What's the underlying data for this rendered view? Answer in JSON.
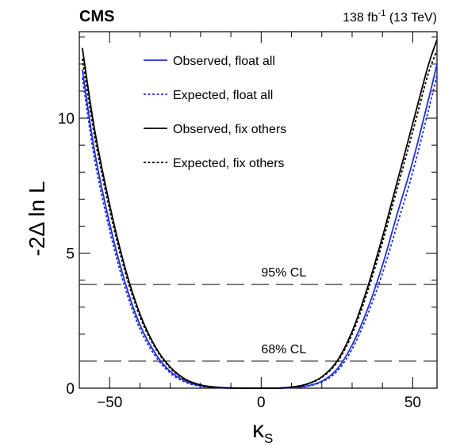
{
  "header": {
    "experiment": "CMS",
    "lumi_value": "138 fb",
    "lumi_exponent": "-1",
    "energy": " (13 TeV)"
  },
  "chart_data": {
    "type": "line",
    "title": "",
    "xlabel": "κ",
    "xlabel_subscript": "S",
    "ylabel": "-2Δ ln L",
    "xlim": [
      -60,
      58
    ],
    "ylim": [
      0,
      13.2
    ],
    "x_ticks": [
      -50,
      0,
      50
    ],
    "y_ticks": [
      0,
      5,
      10
    ],
    "grid": false,
    "legend_position": "top-center",
    "reference_lines": [
      {
        "label": "95% CL",
        "y": 3.84,
        "style": "long-dash"
      },
      {
        "label": "68% CL",
        "y": 1.0,
        "style": "long-dash"
      }
    ],
    "series": [
      {
        "name": "Observed, float all",
        "color": "#1f2fd6",
        "style": "solid",
        "x": [
          -59,
          -55,
          -50,
          -45,
          -40,
          -35,
          -30,
          -25,
          -20,
          -15,
          -10,
          -5,
          0,
          5,
          10,
          15,
          20,
          25,
          30,
          35,
          40,
          45,
          50,
          55,
          58
        ],
        "y": [
          11.8,
          8.8,
          6.1,
          3.95,
          2.35,
          1.3,
          0.62,
          0.26,
          0.09,
          0.03,
          0.0,
          0.0,
          0.0,
          0.0,
          0.02,
          0.08,
          0.26,
          0.7,
          1.6,
          2.9,
          4.55,
          6.5,
          8.4,
          10.6,
          12.0
        ]
      },
      {
        "name": "Expected, float all",
        "color": "#1f2fd6",
        "style": "dotted",
        "x": [
          -59,
          -55,
          -50,
          -45,
          -40,
          -35,
          -30,
          -25,
          -20,
          -15,
          -10,
          -5,
          0,
          5,
          10,
          15,
          20,
          25,
          30,
          35,
          40,
          45,
          50,
          55,
          58
        ],
        "y": [
          11.5,
          8.5,
          5.85,
          3.75,
          2.2,
          1.2,
          0.56,
          0.22,
          0.07,
          0.02,
          0.0,
          0.0,
          0.0,
          0.0,
          0.02,
          0.07,
          0.23,
          0.62,
          1.45,
          2.7,
          4.25,
          6.1,
          8.0,
          10.2,
          11.6
        ]
      },
      {
        "name": "Observed, fix others",
        "color": "#000000",
        "style": "solid",
        "x": [
          -59,
          -55,
          -50,
          -45,
          -40,
          -35,
          -30,
          -25,
          -20,
          -15,
          -10,
          -5,
          0,
          5,
          10,
          15,
          20,
          25,
          30,
          35,
          40,
          45,
          50,
          55,
          58
        ],
        "y": [
          12.6,
          9.6,
          6.8,
          4.5,
          2.75,
          1.55,
          0.78,
          0.33,
          0.12,
          0.04,
          0.01,
          0.0,
          0.0,
          0.0,
          0.04,
          0.15,
          0.42,
          1.0,
          2.1,
          3.7,
          5.6,
          7.7,
          9.8,
          11.9,
          12.9
        ]
      },
      {
        "name": "Expected, fix others",
        "color": "#000000",
        "style": "dotted",
        "x": [
          -59,
          -55,
          -50,
          -45,
          -40,
          -35,
          -30,
          -25,
          -20,
          -15,
          -10,
          -5,
          0,
          5,
          10,
          15,
          20,
          25,
          30,
          35,
          40,
          45,
          50,
          55,
          58
        ],
        "y": [
          12.2,
          9.35,
          6.6,
          4.35,
          2.65,
          1.5,
          0.74,
          0.31,
          0.11,
          0.03,
          0.01,
          0.0,
          0.0,
          0.0,
          0.04,
          0.14,
          0.4,
          0.95,
          2.0,
          3.55,
          5.4,
          7.45,
          9.5,
          11.6,
          12.5
        ]
      }
    ]
  }
}
